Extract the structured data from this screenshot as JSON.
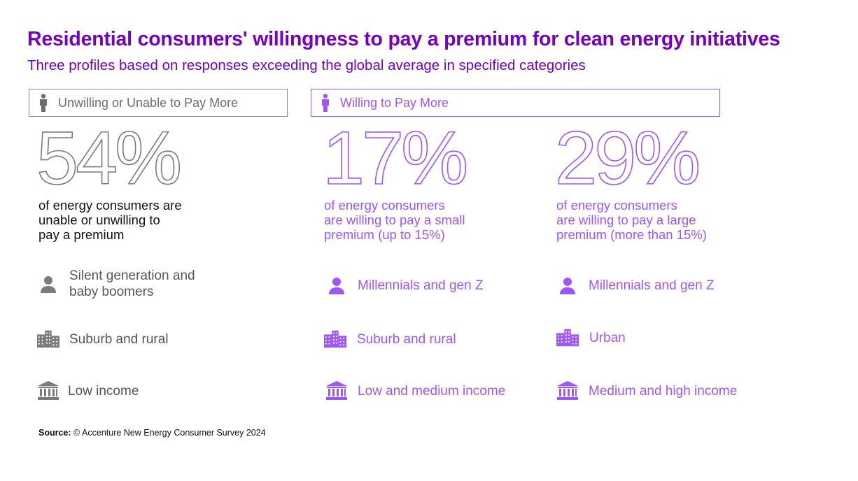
{
  "header": {
    "title": "Residential consumers' willingness to pay a premium for clean energy initiatives",
    "subtitle": "Three profiles based on responses exceeding the global average in specified categories"
  },
  "colors": {
    "accent": "#7500c0",
    "purple_light": "#a055f5",
    "gray": "#7b7b7b"
  },
  "groups": {
    "unwilling": {
      "label": "Unwilling or Unable to Pay More",
      "icon": "person-standing-icon"
    },
    "willing": {
      "label": "Willing to Pay More",
      "icon": "person-standing-icon"
    }
  },
  "profiles": [
    {
      "percent": "54%",
      "desc": [
        "of energy consumers are",
        "unable or unwilling to",
        "pay a premium"
      ],
      "generation": [
        "Silent generation and",
        "baby boomers"
      ],
      "location": "Suburb and rural",
      "income": "Low income"
    },
    {
      "percent": "17%",
      "desc": [
        "of energy consumers",
        "are willing to pay a small",
        "premium (up to 15%)"
      ],
      "generation": [
        "Millennials and gen Z"
      ],
      "location": "Suburb and rural",
      "income": "Low and medium income"
    },
    {
      "percent": "29%",
      "desc": [
        "of energy consumers",
        "are willing to pay a large",
        "premium (more than 15%)"
      ],
      "generation": [
        "Millennials and gen Z"
      ],
      "location": "Urban",
      "income": "Medium and high income"
    }
  ],
  "icons": {
    "generation": "person-bust-icon",
    "location": "buildings-icon",
    "income": "bank-icon"
  },
  "footer": {
    "source_label": "Source:",
    "source_text": "© Accenture New Energy Consumer Survey 2024"
  }
}
